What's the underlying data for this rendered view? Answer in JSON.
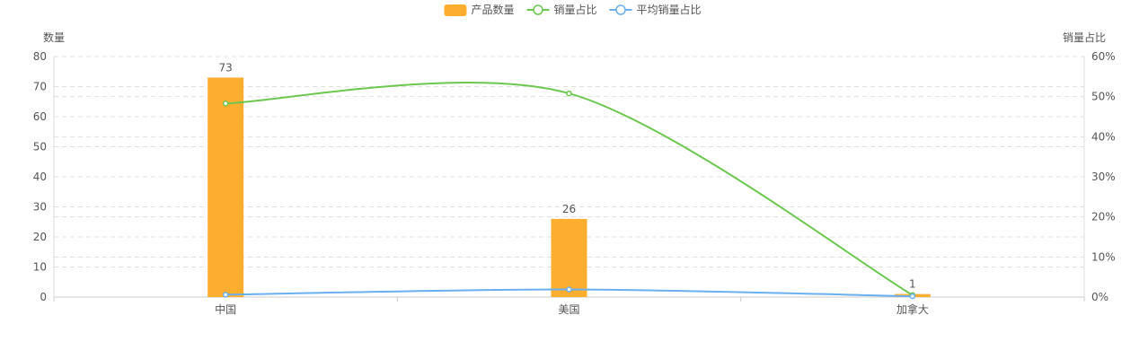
{
  "chart_data": {
    "type": "bar",
    "categories": [
      "中国",
      "美国",
      "加拿大"
    ],
    "legend": {
      "position": "top-center",
      "items": [
        {
          "name": "产品数量",
          "kind": "bar"
        },
        {
          "name": "销量占比",
          "kind": "line"
        },
        {
          "name": "平均销量占比",
          "kind": "line"
        }
      ]
    },
    "y_left": {
      "label": "数量",
      "min": 0,
      "max": 80,
      "ticks": [
        0,
        10,
        20,
        30,
        40,
        50,
        60,
        70,
        80
      ]
    },
    "y_right": {
      "label": "销量占比",
      "min": 0,
      "max": 60,
      "ticks": [
        "0%",
        "10%",
        "20%",
        "30%",
        "40%",
        "50%",
        "60%"
      ]
    },
    "grid": true,
    "series": [
      {
        "name": "产品数量",
        "type": "bar",
        "axis": "left",
        "values": [
          73,
          26,
          1
        ],
        "data_labels": [
          "73",
          "26",
          "1"
        ],
        "color": "#FEAE2E"
      },
      {
        "name": "销量占比",
        "type": "line",
        "axis": "right",
        "values": [
          48.3,
          50.8,
          0.5
        ],
        "color": "#6CC750"
      },
      {
        "name": "平均销量占比",
        "type": "line",
        "axis": "right",
        "values": [
          0.6,
          1.9,
          0.2
        ],
        "color": "#6AAFEF"
      }
    ]
  }
}
